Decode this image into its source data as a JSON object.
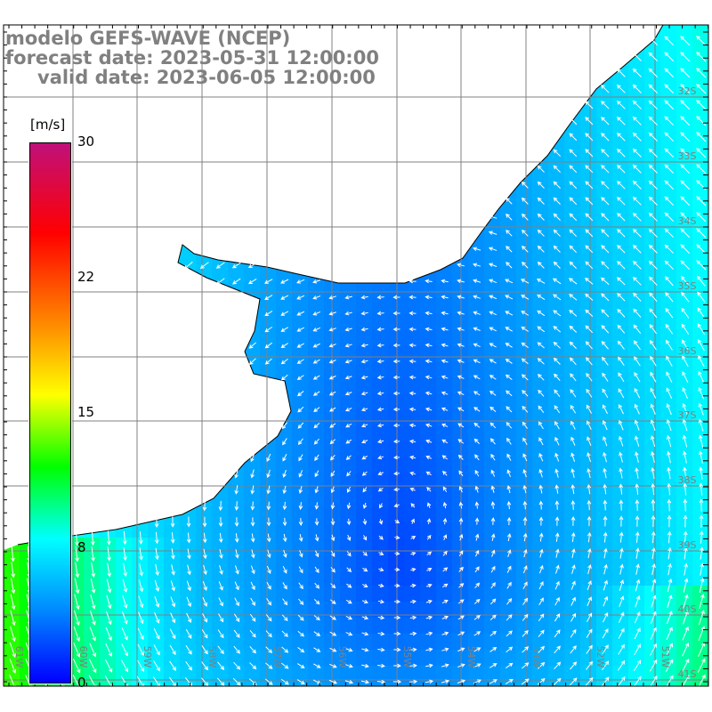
{
  "title": {
    "model": "modelo GEFS-WAVE (NCEP)",
    "forecast": "forecast date: 2023-05-31 12:00:00",
    "valid": "valid date: 2023-06-05 12:00:00"
  },
  "colorbar": {
    "unit": "[m/s]",
    "ticks": [
      "30",
      "22",
      "15",
      "8",
      "0"
    ],
    "range": [
      0,
      30
    ],
    "stops": [
      {
        "v": 0,
        "c": "#0000ff"
      },
      {
        "v": 4,
        "c": "#0088ff"
      },
      {
        "v": 8,
        "c": "#00ffff"
      },
      {
        "v": 12,
        "c": "#00ff00"
      },
      {
        "v": 16,
        "c": "#ffff00"
      },
      {
        "v": 20,
        "c": "#ff8800"
      },
      {
        "v": 25,
        "c": "#ff0000"
      },
      {
        "v": 30,
        "c": "#c0107a"
      }
    ]
  },
  "lat_labels": [
    "32S",
    "33S",
    "34S",
    "35S",
    "36S",
    "37S",
    "38S",
    "39S",
    "40S",
    "41S"
  ],
  "lon_labels": [
    "61W",
    "60W",
    "59W",
    "58W",
    "57W",
    "56W",
    "55W",
    "54W",
    "53W",
    "52W",
    "51W"
  ],
  "colors": {
    "grid": "#808080",
    "label": "#808080",
    "coast": "#000000",
    "land": "#ffffff"
  }
}
